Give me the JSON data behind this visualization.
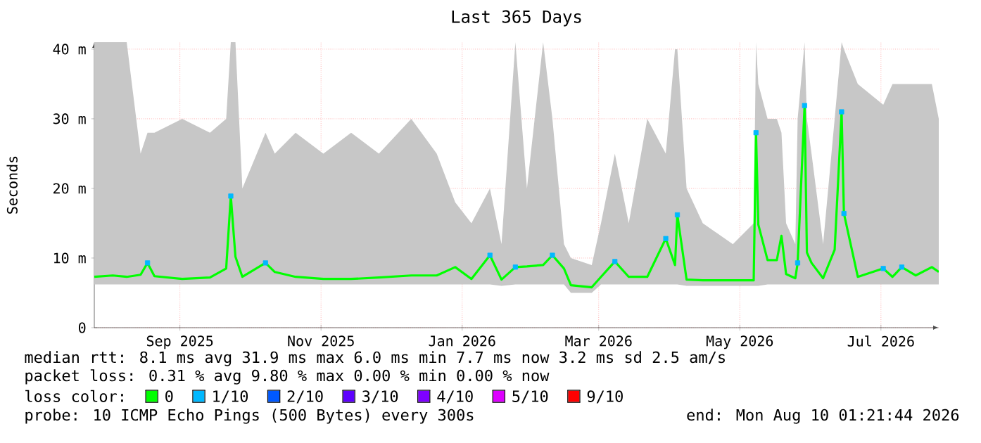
{
  "chart_data": {
    "type": "line",
    "title": "Last 365 Days",
    "ylabel": "Seconds",
    "xlim": [
      "2025-08-10",
      "2026-08-10"
    ],
    "xticks": [
      {
        "value": "2025-09-16",
        "label": "Sep 2025"
      },
      {
        "value": "2025-11-16",
        "label": "Nov 2025"
      },
      {
        "value": "2026-01-16",
        "label": "Jan 2026"
      },
      {
        "value": "2026-03-16",
        "label": "Mar 2026"
      },
      {
        "value": "2026-05-16",
        "label": "May 2026"
      },
      {
        "value": "2026-07-16",
        "label": "Jul 2026"
      }
    ],
    "ylim": [
      0,
      41
    ],
    "yticks": [
      0,
      {
        "value": 10,
        "label": "10 m"
      },
      {
        "value": 20,
        "label": "20 m"
      },
      {
        "value": 30,
        "label": "30 m"
      },
      {
        "value": 40,
        "label": "40 m"
      }
    ],
    "grid": true,
    "legend": "bottom",
    "legend_title": "loss color:",
    "x": [
      "2025-08-10",
      "2025-08-18",
      "2025-08-24",
      "2025-08-30",
      "2025-09-02",
      "2025-09-05",
      "2025-09-17",
      "2025-09-29",
      "2025-10-06",
      "2025-10-08",
      "2025-10-10",
      "2025-10-13",
      "2025-10-23",
      "2025-10-27",
      "2025-11-05",
      "2025-11-17",
      "2025-11-29",
      "2025-12-11",
      "2025-12-25",
      "2026-01-05",
      "2026-01-13",
      "2026-01-20",
      "2026-01-28",
      "2026-02-02",
      "2026-02-08",
      "2026-02-13",
      "2026-02-20",
      "2026-02-24",
      "2026-03-01",
      "2026-03-04",
      "2026-03-13",
      "2026-03-17",
      "2026-03-23",
      "2026-03-29",
      "2026-04-06",
      "2026-04-14",
      "2026-04-18",
      "2026-04-19",
      "2026-04-23",
      "2026-04-30",
      "2026-05-13",
      "2026-05-22",
      "2026-05-23",
      "2026-05-24",
      "2026-05-28",
      "2026-06-01",
      "2026-06-03",
      "2026-06-05",
      "2026-06-09",
      "2026-06-10",
      "2026-06-13",
      "2026-06-14",
      "2026-06-16",
      "2026-06-21",
      "2026-06-26",
      "2026-06-29",
      "2026-06-30",
      "2026-07-06",
      "2026-07-17",
      "2026-07-21",
      "2026-07-25",
      "2026-07-31",
      "2026-08-07",
      "2026-08-10"
    ],
    "series": [
      {
        "name": "0",
        "color": "#00ff00",
        "values": [
          7.3,
          7.5,
          7.3,
          7.6,
          9.3,
          7.4,
          7.0,
          7.2,
          8.5,
          18.9,
          10.2,
          7.3,
          9.3,
          8.0,
          7.3,
          7.0,
          7.0,
          7.2,
          7.5,
          7.5,
          8.7,
          7.0,
          10.4,
          6.9,
          8.7,
          8.8,
          9.0,
          10.4,
          8.5,
          6.1,
          5.8,
          7.3,
          9.5,
          7.3,
          7.3,
          12.8,
          9.0,
          16.2,
          6.9,
          6.8,
          6.8,
          6.8,
          28.0,
          14.8,
          9.7,
          9.7,
          13.2,
          7.7,
          7.1,
          9.3,
          31.9,
          10.8,
          9.3,
          7.1,
          11.2,
          31.0,
          16.4,
          7.3,
          8.5,
          7.3,
          8.7,
          7.5,
          8.7,
          8.0
        ],
        "lower": [
          6.2,
          6.2,
          6.2,
          6.2,
          6.2,
          6.2,
          6.2,
          6.2,
          6.2,
          6.2,
          6.2,
          6.2,
          6.2,
          6.2,
          6.2,
          6.2,
          6.2,
          6.2,
          6.2,
          6.2,
          6.2,
          6.2,
          6.2,
          6.0,
          6.2,
          6.2,
          6.2,
          6.2,
          6.2,
          5.0,
          5.0,
          6.2,
          6.2,
          6.2,
          6.2,
          6.2,
          6.2,
          6.2,
          6.0,
          6.0,
          6.0,
          6.0,
          6.0,
          6.0,
          6.2,
          6.2,
          6.2,
          6.2,
          6.2,
          6.2,
          6.2,
          6.2,
          6.2,
          6.2,
          6.2,
          6.2,
          6.2,
          6.2,
          6.2,
          6.2,
          6.2,
          6.2,
          6.2,
          6.2
        ],
        "upper": [
          41,
          41,
          41,
          25,
          28,
          28,
          30,
          28,
          30,
          41,
          41,
          20,
          28,
          25,
          28,
          25,
          28,
          25,
          30,
          25,
          18,
          15,
          20,
          12,
          41,
          20,
          41,
          30,
          12,
          10,
          9,
          15,
          25,
          15,
          30,
          25,
          40,
          40,
          20,
          15,
          12,
          15,
          41,
          35,
          30,
          30,
          28,
          15,
          12,
          30,
          41,
          30,
          25,
          12,
          30,
          41,
          40,
          35,
          32,
          35,
          35,
          35,
          35,
          30
        ]
      },
      {
        "name": "1/10",
        "type": "scatter",
        "marker": "square",
        "color": "#00b8ff",
        "x": [
          "2025-09-02",
          "2025-10-08",
          "2025-10-23",
          "2026-01-28",
          "2026-02-08",
          "2026-02-24",
          "2026-03-23",
          "2026-04-14",
          "2026-04-19",
          "2026-05-23",
          "2026-06-10",
          "2026-06-13",
          "2026-06-29",
          "2026-06-30",
          "2026-07-17",
          "2026-07-25"
        ],
        "values": [
          9.3,
          18.9,
          9.3,
          10.4,
          8.7,
          10.4,
          9.5,
          12.8,
          16.2,
          28.0,
          9.3,
          31.9,
          31.0,
          16.4,
          8.5,
          8.7
        ]
      },
      {
        "name": "2/10",
        "type": "scatter",
        "marker": "square",
        "color": "#0059ff",
        "values": [
          null,
          null,
          null,
          null,
          null,
          null,
          null,
          null,
          null,
          null,
          null,
          null,
          null,
          null,
          null,
          null,
          null,
          null,
          null,
          null,
          null,
          null,
          null,
          null,
          null,
          null,
          null,
          null,
          null,
          null,
          null,
          null,
          null,
          null,
          null,
          null,
          null,
          null,
          null,
          null,
          null,
          null,
          null,
          null,
          null,
          null,
          null,
          null,
          null,
          null,
          null,
          null,
          null,
          null,
          null,
          null,
          null,
          null,
          null,
          null,
          null,
          null,
          null,
          null
        ]
      },
      {
        "name": "3/10",
        "type": "scatter",
        "marker": "square",
        "color": "#5e00ff",
        "values": [
          null,
          null,
          null,
          null,
          null,
          null,
          null,
          null,
          null,
          null,
          null,
          null,
          null,
          null,
          null,
          null,
          null,
          null,
          null,
          null,
          null,
          null,
          null,
          null,
          null,
          null,
          null,
          null,
          null,
          null,
          null,
          null,
          null,
          null,
          null,
          null,
          null,
          null,
          null,
          null,
          null,
          null,
          null,
          null,
          null,
          null,
          null,
          null,
          null,
          null,
          null,
          null,
          null,
          null,
          null,
          null,
          null,
          null,
          null,
          null,
          null,
          null,
          null,
          null
        ]
      },
      {
        "name": "4/10",
        "type": "scatter",
        "marker": "square",
        "color": "#7e00ff",
        "values": [
          null,
          null,
          null,
          null,
          null,
          null,
          null,
          null,
          null,
          null,
          null,
          null,
          null,
          null,
          null,
          null,
          null,
          null,
          null,
          null,
          null,
          null,
          null,
          null,
          null,
          null,
          null,
          null,
          null,
          null,
          null,
          null,
          null,
          null,
          null,
          null,
          null,
          null,
          null,
          null,
          null,
          null,
          null,
          null,
          null,
          null,
          null,
          null,
          null,
          null,
          null,
          null,
          null,
          null,
          null,
          null,
          null,
          null,
          null,
          null,
          null,
          null,
          null,
          null
        ]
      },
      {
        "name": "5/10",
        "type": "scatter",
        "marker": "square",
        "color": "#dd00ff",
        "values": [
          null,
          null,
          null,
          null,
          null,
          null,
          null,
          null,
          null,
          null,
          null,
          null,
          null,
          null,
          null,
          null,
          null,
          null,
          null,
          null,
          null,
          null,
          null,
          null,
          null,
          null,
          null,
          null,
          null,
          null,
          null,
          null,
          null,
          null,
          null,
          null,
          null,
          null,
          null,
          null,
          null,
          null,
          null,
          null,
          null,
          null,
          null,
          null,
          null,
          null,
          null,
          null,
          null,
          null,
          null,
          null,
          null,
          null,
          null,
          null,
          null,
          null,
          null,
          null
        ]
      },
      {
        "name": "9/10",
        "type": "scatter",
        "marker": "square",
        "color": "#ff0000",
        "values": [
          null,
          null,
          null,
          null,
          null,
          null,
          null,
          null,
          null,
          null,
          null,
          null,
          null,
          null,
          null,
          null,
          null,
          null,
          null,
          null,
          null,
          null,
          null,
          null,
          null,
          null,
          null,
          null,
          null,
          null,
          null,
          null,
          null,
          null,
          null,
          null,
          null,
          null,
          null,
          null,
          null,
          null,
          null,
          null,
          null,
          null,
          null,
          null,
          null,
          null,
          null,
          null,
          null,
          null,
          null,
          null,
          null,
          null,
          null,
          null,
          null,
          null,
          null,
          null
        ]
      }
    ],
    "annotations": [
      "median rtt: 8.1 ms avg 31.9 ms max 6.0 ms min 7.7 ms now 3.2 ms sd 2.5 am/s",
      "packet loss: 0.31 % avg 9.80 % max 0.00 % min 0.00 % now",
      "probe: 10 ICMP Echo Pings (500 Bytes) every 300s",
      "end: Mon Aug 10 01:21:44 2026"
    ]
  }
}
